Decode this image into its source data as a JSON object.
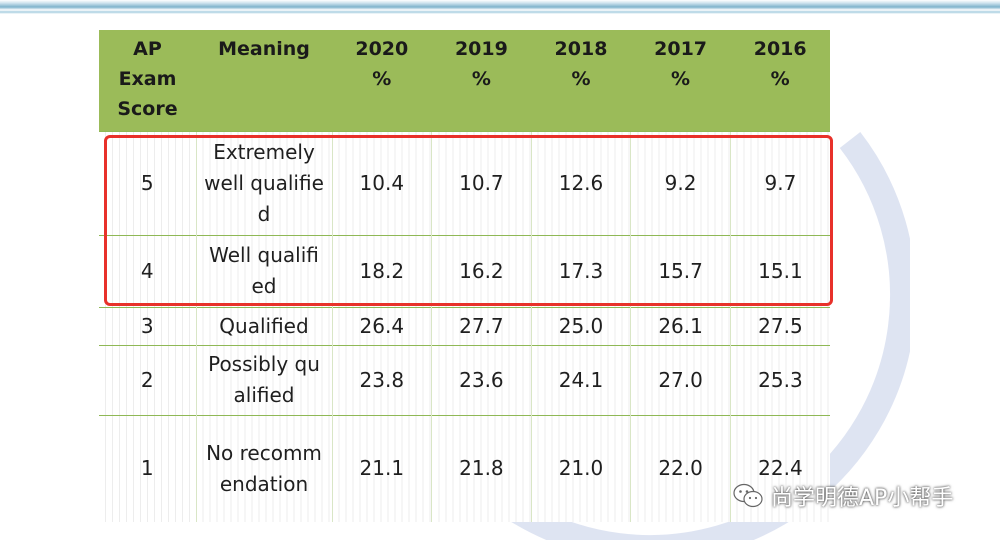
{
  "table": {
    "headers": [
      [
        "AP Exam",
        "Score"
      ],
      [
        "Meaning"
      ],
      [
        "2020",
        "%"
      ],
      [
        "2019",
        "%"
      ],
      [
        "2018",
        "%"
      ],
      [
        "2017",
        "%"
      ],
      [
        "2016",
        "%"
      ]
    ],
    "rows": [
      {
        "score": "5",
        "meaning": "Extremely well qualified",
        "values": [
          "10.4",
          "10.7",
          "12.6",
          "9.2",
          "9.7"
        ]
      },
      {
        "score": "4",
        "meaning": "Well qualified",
        "values": [
          "18.2",
          "16.2",
          "17.3",
          "15.7",
          "15.1"
        ]
      },
      {
        "score": "3",
        "meaning": "Qualified",
        "values": [
          "26.4",
          "27.7",
          "25.0",
          "26.1",
          "27.5"
        ]
      },
      {
        "score": "2",
        "meaning": "Possibly qualified",
        "values": [
          "23.8",
          "23.6",
          "24.1",
          "27.0",
          "25.3"
        ]
      },
      {
        "score": "1",
        "meaning": "No recommendation",
        "values": [
          "21.1",
          "21.8",
          "21.0",
          "22.0",
          "22.4"
        ]
      }
    ]
  },
  "watermark": {
    "account": "尚学明德AP小帮手",
    "icon": "wechat-icon"
  },
  "colors": {
    "header_bg": "#9bbb59",
    "highlight_border": "#e8312a",
    "row_rule": "#8fb855"
  }
}
